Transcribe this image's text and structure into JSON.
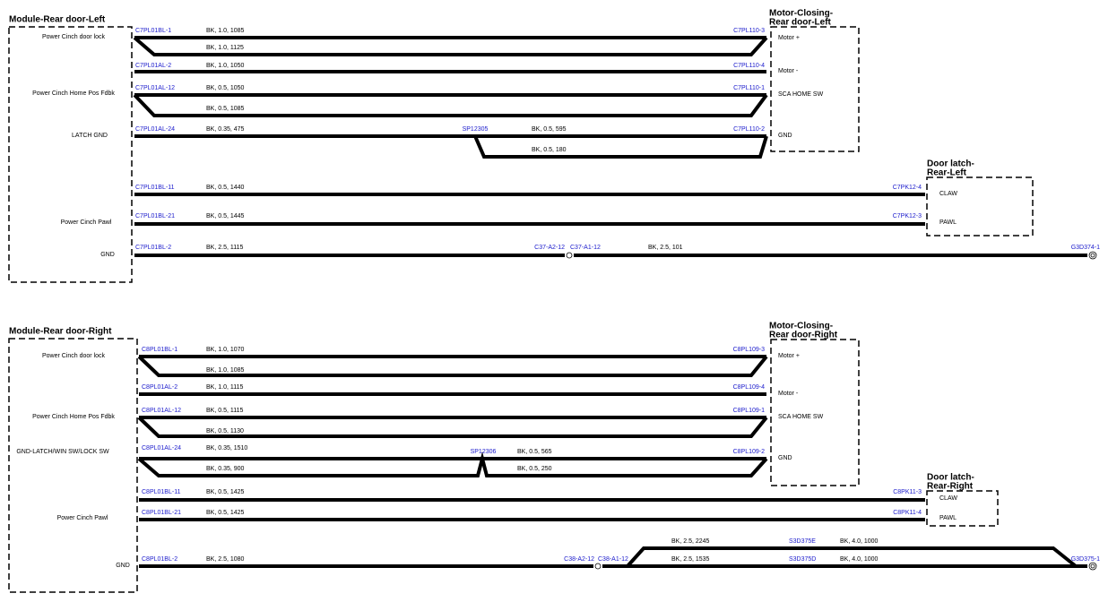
{
  "sections": [
    {
      "module": "Module-Rear door-Left",
      "functions": [
        "Power Cinch door lock",
        "Power Cinch Home Pos Fdbk",
        "LATCH GND",
        "Power Cinch Pawl",
        "GND"
      ],
      "motor": {
        "title": [
          "Motor-Closing-",
          "Rear door-Left"
        ],
        "pins": [
          "Motor +",
          "Motor -",
          "SCA HOME SW",
          "GND"
        ]
      },
      "latch": {
        "title": [
          "Door latch-",
          "Rear-Left"
        ],
        "pins": [
          "CLAW",
          "PAWL"
        ]
      },
      "connectors": [
        "C7PL01BL-1",
        "C7PL110-3",
        "C7PL01AL-2",
        "C7PL110-4",
        "C7PL01AL-12",
        "C7PL110-1",
        "C7PL01AL-24",
        "SP12305",
        "C7PL110-2",
        "C7PL01BL-11",
        "C7PK12-4",
        "C7PL01BL-21",
        "C7PK12-3",
        "C7PL01BL-2",
        "C37-A2-12",
        "C37-A1-12",
        "G3D374-1"
      ],
      "wires": [
        "BK, 1.0, 1085",
        "BK, 1.0, 1125",
        "BK, 1.0, 1050",
        "BK, 0.5, 1050",
        "BK, 0.5, 1085",
        "BK, 0.35, 475",
        "BK, 0.5, 595",
        "BK, 0.5, 180",
        "BK, 0.5, 1440",
        "BK, 0.5, 1445",
        "BK, 2.5, 1115",
        "BK, 2.5, 101"
      ]
    },
    {
      "module": "Module-Rear door-Right",
      "functions": [
        "Power Cinch door lock",
        "Power Cinch Home Pos Fdbk",
        "GND-LATCH/WIN SW/LOCK SW",
        "Power Cinch Pawl",
        "GND"
      ],
      "motor": {
        "title": [
          "Motor-Closing-",
          "Rear door-Right"
        ],
        "pins": [
          "Motor +",
          "Motor -",
          "SCA HOME SW",
          "GND"
        ]
      },
      "latch": {
        "title": [
          "Door latch-",
          "Rear-Right"
        ],
        "pins": [
          "CLAW",
          "PAWL"
        ]
      },
      "connectors": [
        "C8PL01BL-1",
        "C8PL109-3",
        "C8PL01AL-2",
        "C8PL109-4",
        "C8PL01AL-12",
        "C8PL109-1",
        "C8PL01AL-24",
        "SP12306",
        "C8PL109-2",
        "C8PL01BL-11",
        "C8PK11-3",
        "C8PL01BL-21",
        "C8PK11-4",
        "C8PL01BL-2",
        "C38-A2-12",
        "C38-A1-12",
        "S3D375E",
        "S3D375D",
        "G3D375-1"
      ],
      "wires": [
        "BK, 1.0, 1070",
        "BK, 1.0, 1085",
        "BK, 1.0, 1115",
        "BK, 0.5, 1115",
        "BK, 0.5, 1130",
        "BK, 0.35, 1510",
        "BK, 0.5, 565",
        "BK, 0.35, 900",
        "BK, 0.5, 250",
        "BK, 0.5, 1425",
        "BK, 0.5, 1425",
        "BK, 2.5, 1080",
        "BK, 2.5, 2245",
        "BK, 2.5, 1535",
        "BK, 4.0, 1000",
        "BK, 4.0, 1000"
      ]
    }
  ]
}
